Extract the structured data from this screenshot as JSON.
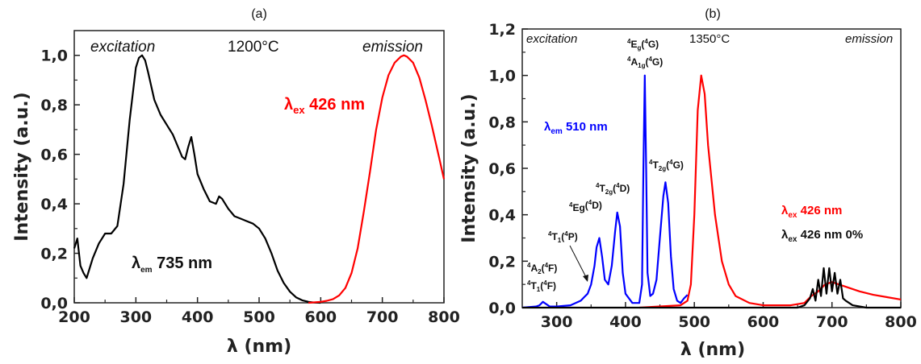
{
  "chart_data": [
    {
      "type": "line",
      "panel_label": "(a)",
      "xlabel": "λ (nm)",
      "ylabel": "Intensity (a.u.)",
      "xlim": [
        200,
        800
      ],
      "ylim": [
        0,
        1.1
      ],
      "x_ticks": [
        "200",
        "300",
        "400",
        "500",
        "600",
        "700",
        "800"
      ],
      "y_ticks": [
        "0,0",
        "0,2",
        "0,4",
        "0,6",
        "0,8",
        "1,0"
      ],
      "annotations": {
        "excitation": "excitation",
        "temperature": "1200°C",
        "emission": "emission",
        "lambda_em": {
          "symbol": "λ",
          "sub": "em",
          "text": " 735 nm"
        },
        "lambda_ex": {
          "symbol": "λ",
          "sub": "ex",
          "text": " 426 nm"
        }
      },
      "series": [
        {
          "color": "#000000",
          "x": [
            200,
            205,
            210,
            215,
            220,
            225,
            230,
            240,
            250,
            260,
            270,
            280,
            290,
            300,
            305,
            310,
            315,
            320,
            330,
            340,
            350,
            360,
            370,
            375,
            380,
            385,
            390,
            395,
            400,
            410,
            420,
            430,
            435,
            440,
            450,
            460,
            470,
            480,
            490,
            500,
            510,
            520,
            530,
            540,
            550,
            560,
            570,
            580,
            590,
            600
          ],
          "y": [
            0.22,
            0.26,
            0.15,
            0.12,
            0.1,
            0.14,
            0.18,
            0.24,
            0.28,
            0.28,
            0.31,
            0.48,
            0.74,
            0.95,
            0.99,
            1.0,
            0.98,
            0.93,
            0.82,
            0.76,
            0.72,
            0.68,
            0.62,
            0.59,
            0.58,
            0.63,
            0.67,
            0.6,
            0.52,
            0.46,
            0.41,
            0.4,
            0.43,
            0.42,
            0.38,
            0.35,
            0.34,
            0.33,
            0.32,
            0.3,
            0.26,
            0.2,
            0.13,
            0.08,
            0.045,
            0.022,
            0.01,
            0.004,
            0.001,
            0.0
          ]
        },
        {
          "color": "#ff0000",
          "x": [
            580,
            600,
            610,
            620,
            630,
            640,
            650,
            660,
            670,
            680,
            690,
            700,
            710,
            720,
            730,
            735,
            740,
            750,
            760,
            770,
            780,
            790,
            800
          ],
          "y": [
            0.0,
            0.004,
            0.008,
            0.015,
            0.03,
            0.06,
            0.12,
            0.22,
            0.37,
            0.53,
            0.7,
            0.83,
            0.92,
            0.97,
            0.995,
            1.0,
            0.995,
            0.97,
            0.91,
            0.82,
            0.72,
            0.61,
            0.5
          ]
        }
      ]
    },
    {
      "type": "line",
      "panel_label": "(b)",
      "xlabel": "λ (nm)",
      "ylabel": "Intensity (a.u.)",
      "xlim": [
        250,
        800
      ],
      "ylim": [
        0,
        1.2
      ],
      "x_ticks": [
        "300",
        "400",
        "500",
        "600",
        "700",
        "800"
      ],
      "y_ticks": [
        "0,0",
        "0,2",
        "0,4",
        "0,6",
        "0,8",
        "1,0",
        "1,2"
      ],
      "annotations": {
        "excitation": "excitation",
        "temperature": "1350°C",
        "emission": "emission",
        "lambda_em": {
          "symbol": "λ",
          "sub": "em",
          "text": " 510 nm"
        },
        "lambda_ex": {
          "symbol": "λ",
          "sub": "ex",
          "text": " 426 nm"
        },
        "lambda_ex0": {
          "symbol": "λ",
          "sub": "ex",
          "text": " 426 nm 0%"
        },
        "transitions": [
          {
            "a": "4",
            "b": "E",
            "c": "g",
            "d": "(",
            "e": "4",
            "f": "G)"
          },
          {
            "a": "4",
            "b": "A",
            "c": "1g",
            "d": "(",
            "e": "4",
            "f": "G)"
          },
          {
            "a": "4",
            "b": "T",
            "c": "2g",
            "d": "(",
            "e": "4",
            "f": "G)"
          },
          {
            "a": "4",
            "b": "T",
            "c": "2g",
            "d": "(",
            "e": "4",
            "f": "D)"
          },
          {
            "a": "4",
            "b": "Eg",
            "c": "",
            "d": "(",
            "e": "4",
            "f": "D)"
          },
          {
            "a": "4",
            "b": "T",
            "c": "1",
            "d": "(",
            "e": "4",
            "f": "P)"
          },
          {
            "a": "4",
            "b": "A",
            "c": "2",
            "d": "(",
            "e": "4",
            "f": "F)"
          },
          {
            "a": "4",
            "b": "T",
            "c": "1",
            "d": "(",
            "e": "4",
            "f": "F)"
          }
        ]
      },
      "series": [
        {
          "color": "#0000ff",
          "x": [
            250,
            270,
            275,
            280,
            285,
            290,
            300,
            320,
            335,
            340,
            345,
            350,
            355,
            358,
            362,
            366,
            370,
            375,
            380,
            385,
            388,
            392,
            396,
            400,
            410,
            420,
            424,
            426,
            428,
            430,
            432,
            436,
            440,
            445,
            450,
            455,
            458,
            462,
            466,
            470,
            475,
            480,
            485,
            490
          ],
          "y": [
            0.0,
            0.005,
            0.01,
            0.025,
            0.015,
            0.005,
            0.005,
            0.01,
            0.03,
            0.045,
            0.06,
            0.1,
            0.18,
            0.26,
            0.3,
            0.22,
            0.12,
            0.1,
            0.18,
            0.33,
            0.41,
            0.35,
            0.15,
            0.06,
            0.02,
            0.02,
            0.1,
            0.6,
            1.0,
            0.6,
            0.15,
            0.05,
            0.06,
            0.12,
            0.3,
            0.48,
            0.54,
            0.45,
            0.22,
            0.08,
            0.03,
            0.02,
            0.04,
            0.055
          ]
        },
        {
          "color": "#ff0000",
          "x": [
            420,
            480,
            490,
            495,
            500,
            505,
            510,
            515,
            520,
            530,
            540,
            550,
            560,
            580,
            600,
            640,
            660,
            670,
            680,
            690,
            700,
            710,
            720,
            740,
            760,
            780,
            800
          ],
          "y": [
            0.0,
            0.01,
            0.03,
            0.1,
            0.4,
            0.85,
            1.0,
            0.92,
            0.7,
            0.4,
            0.2,
            0.1,
            0.05,
            0.02,
            0.01,
            0.01,
            0.02,
            0.05,
            0.07,
            0.1,
            0.11,
            0.1,
            0.09,
            0.07,
            0.055,
            0.045,
            0.035
          ]
        },
        {
          "color": "#000000",
          "x": [
            250,
            600,
            650,
            660,
            668,
            672,
            676,
            680,
            684,
            688,
            692,
            696,
            700,
            704,
            708,
            712,
            716,
            720,
            730,
            750,
            800
          ],
          "y": [
            0.0,
            0.0,
            0.0,
            0.01,
            0.04,
            0.08,
            0.03,
            0.12,
            0.05,
            0.17,
            0.06,
            0.17,
            0.07,
            0.15,
            0.06,
            0.12,
            0.04,
            0.03,
            0.01,
            0.0,
            0.0
          ]
        }
      ]
    }
  ]
}
